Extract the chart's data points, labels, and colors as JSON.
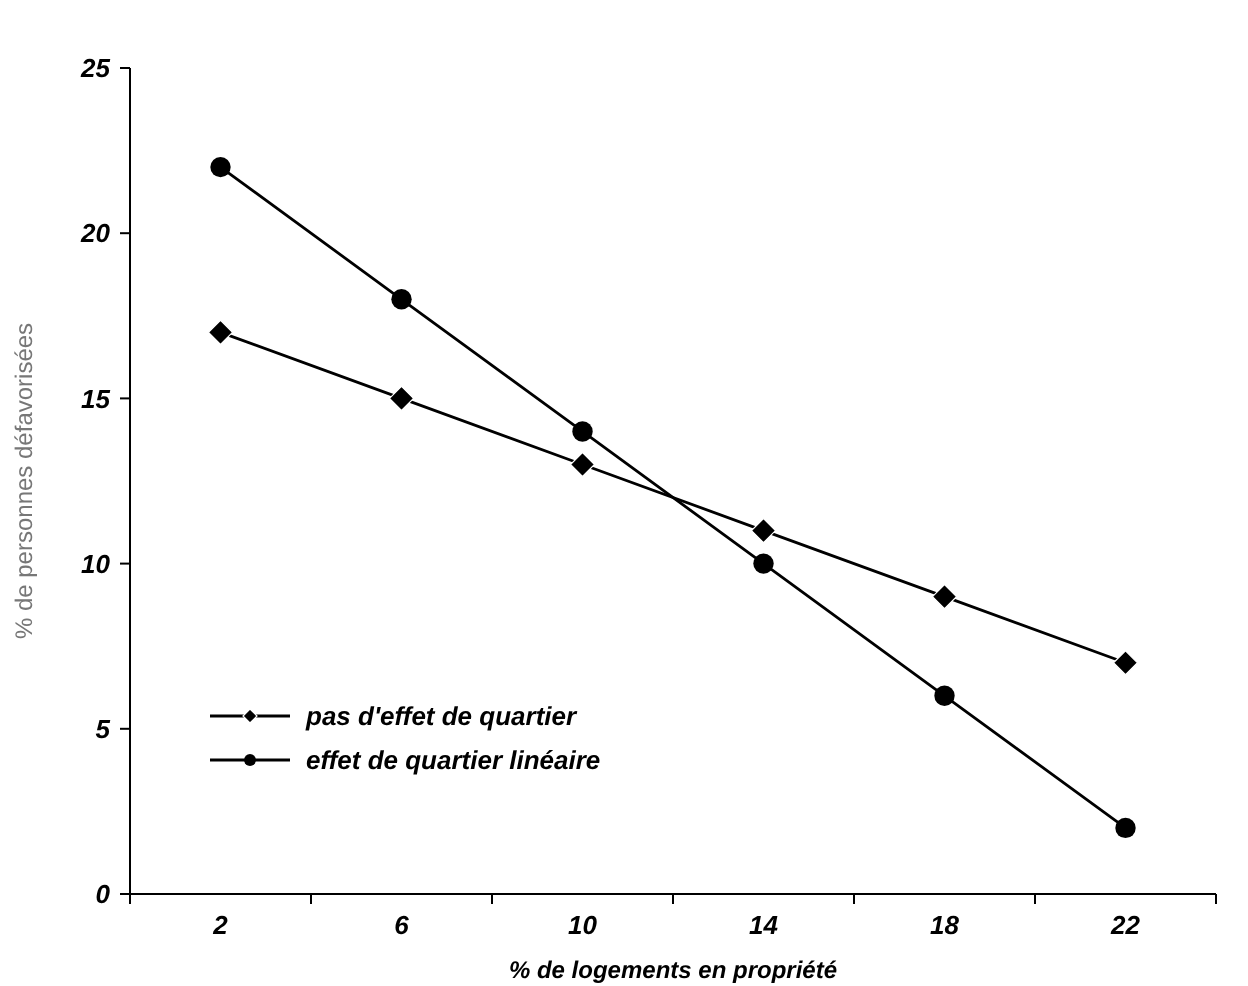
{
  "chart_data": {
    "type": "line",
    "xlabel": "% de logements en propriété",
    "ylabel": "% de personnes défavorisées",
    "categories": [
      "2",
      "6",
      "10",
      "14",
      "18",
      "22"
    ],
    "ylim": [
      0,
      25
    ],
    "yticks": [
      0,
      5,
      10,
      15,
      20,
      25
    ],
    "grid": false,
    "legend": "bottom left",
    "series": [
      {
        "name": "pas d'effet de quartier",
        "color": "#000000",
        "marker": "diamond",
        "values": [
          17,
          15,
          13,
          11,
          9,
          7
        ]
      },
      {
        "name": "effet de quartier linéaire",
        "color": "#000000",
        "marker": "circle",
        "values": [
          22,
          18,
          14,
          10,
          6,
          2
        ]
      }
    ]
  }
}
